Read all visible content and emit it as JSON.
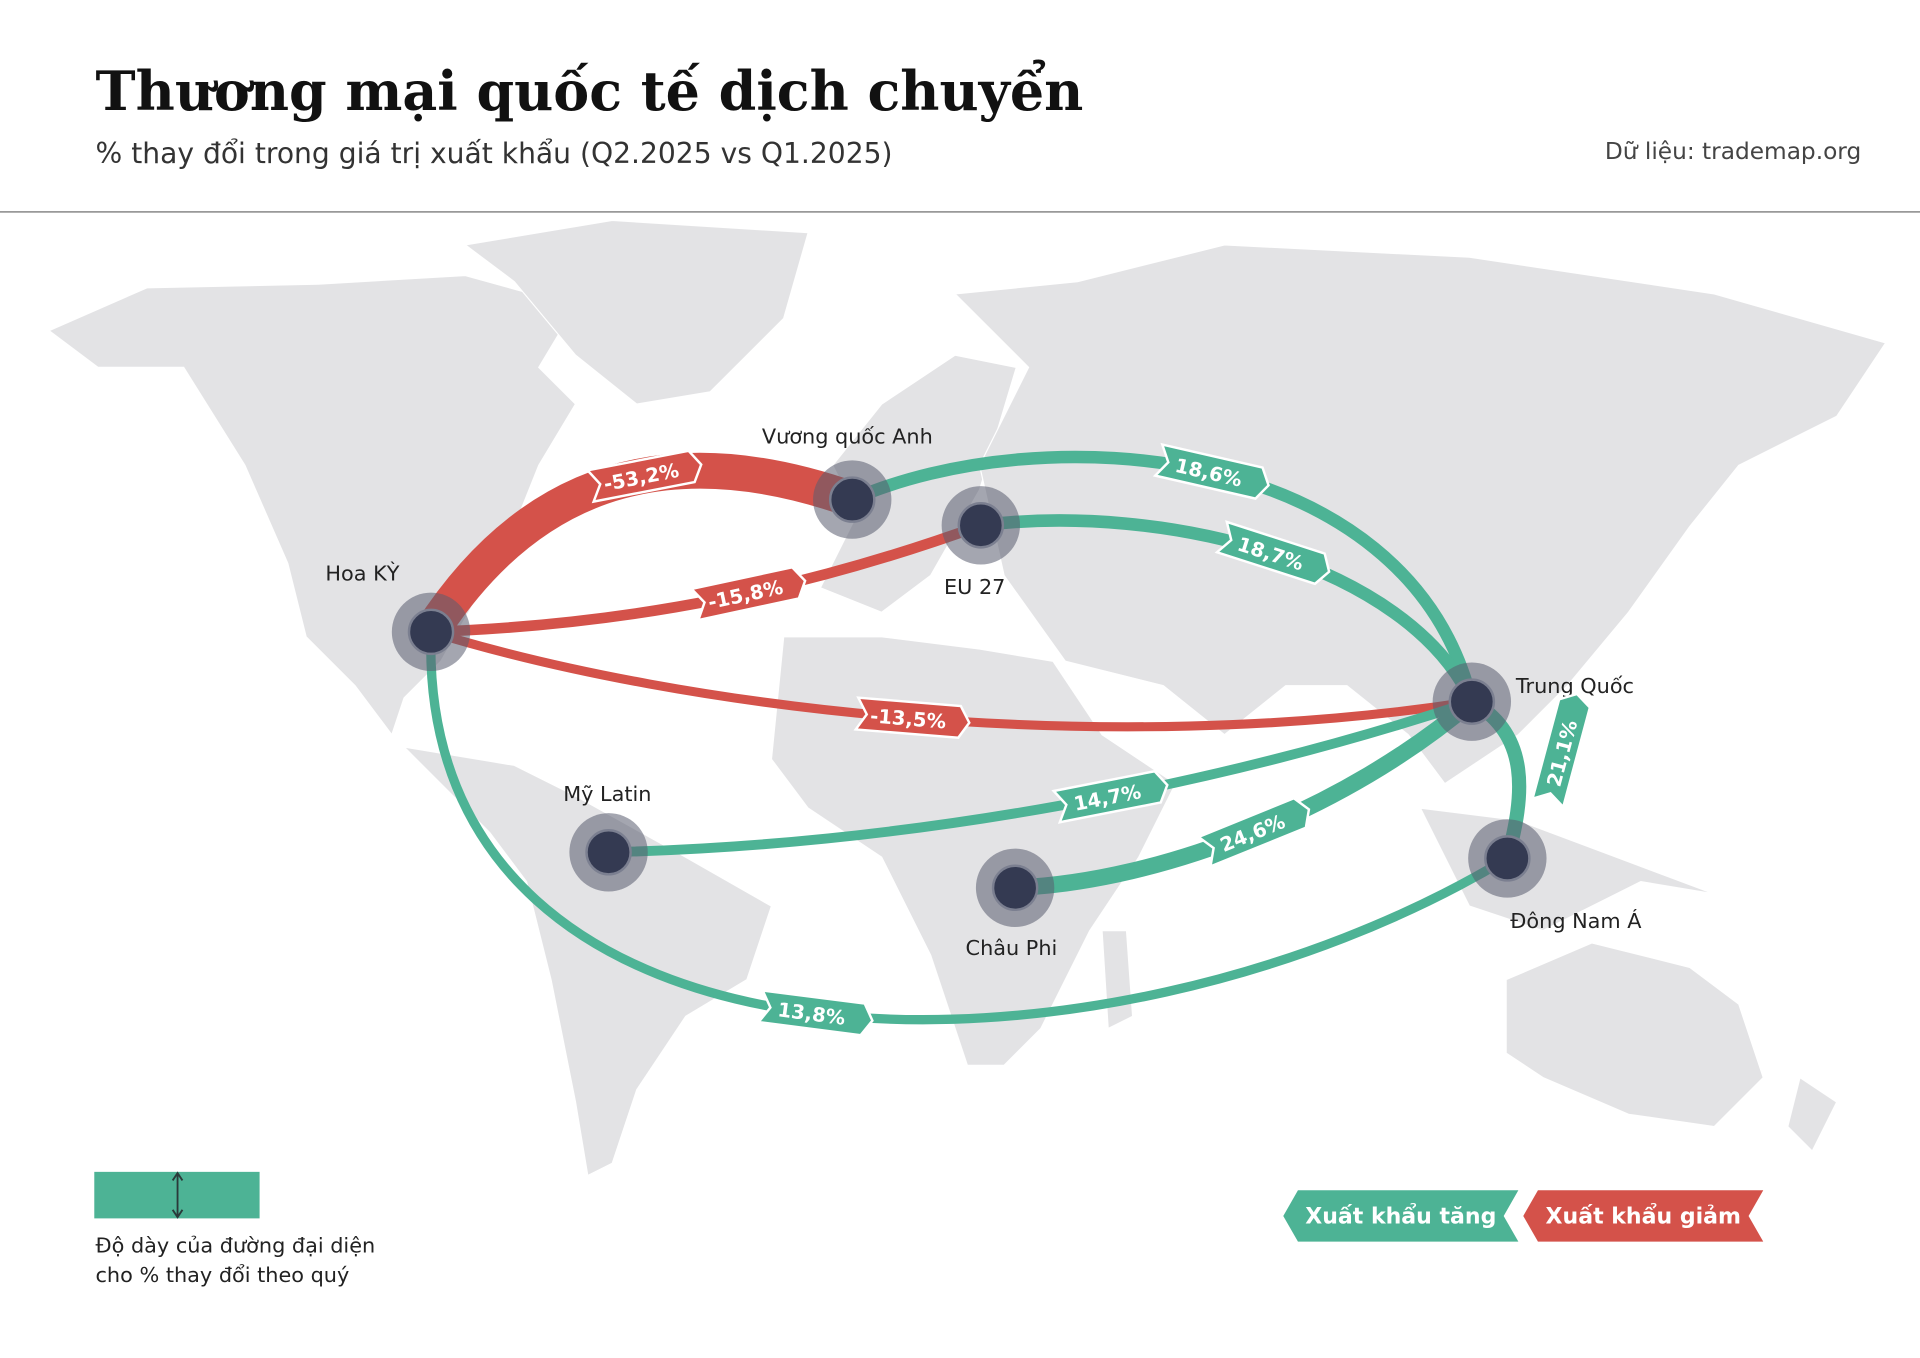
{
  "header": {
    "title": "Thương mại quốc tế dịch chuyển",
    "subtitle": "% thay đổi trong giá trị xuất khẩu (Q2.2025 vs Q1.2025)",
    "source": "Dữ liệu: trademap.org"
  },
  "nodes": [
    {
      "label": "Hoa KỲ"
    },
    {
      "label": "Vương quốc Anh"
    },
    {
      "label": "EU 27"
    },
    {
      "label": "Trung Quốc"
    },
    {
      "label": "Mỹ Latin"
    },
    {
      "label": "Châu Phi"
    },
    {
      "label": "Đông Nam Á"
    }
  ],
  "flows": [
    {
      "from": "Hoa KỲ",
      "to": "Vương quốc Anh",
      "value": -53.2,
      "value_label": "-53,2%"
    },
    {
      "from": "Hoa KỲ",
      "to": "EU 27",
      "value": -15.8,
      "value_label": "-15,8%"
    },
    {
      "from": "Hoa KỲ",
      "to": "Trung Quốc",
      "value": -13.5,
      "value_label": "-13,5%"
    },
    {
      "from": "Vương quốc Anh",
      "to": "Trung Quốc",
      "value": 18.6,
      "value_label": "18,6%"
    },
    {
      "from": "EU 27",
      "to": "Trung Quốc",
      "value": 18.7,
      "value_label": "18,7%"
    },
    {
      "from": "Mỹ Latin",
      "to": "Trung Quốc",
      "value": 14.7,
      "value_label": "14,7%"
    },
    {
      "from": "Châu Phi",
      "to": "Trung Quốc",
      "value": 24.6,
      "value_label": "24,6%"
    },
    {
      "from": "Trung Quốc",
      "to": "Đông Nam Á",
      "value": 21.1,
      "value_label": "21,1%"
    },
    {
      "from": "Hoa KỲ",
      "to": "Đông Nam Á",
      "value": 13.8,
      "value_label": "13,8%"
    }
  ],
  "legend": {
    "thickness_note": [
      "Độ dày của đường đại diện",
      "cho % thay đổi theo quý"
    ],
    "items": [
      {
        "label": "Xuất khẩu tăng",
        "color": "#4db395"
      },
      {
        "label": "Xuất khẩu giảm",
        "color": "#d4524a"
      }
    ]
  }
}
